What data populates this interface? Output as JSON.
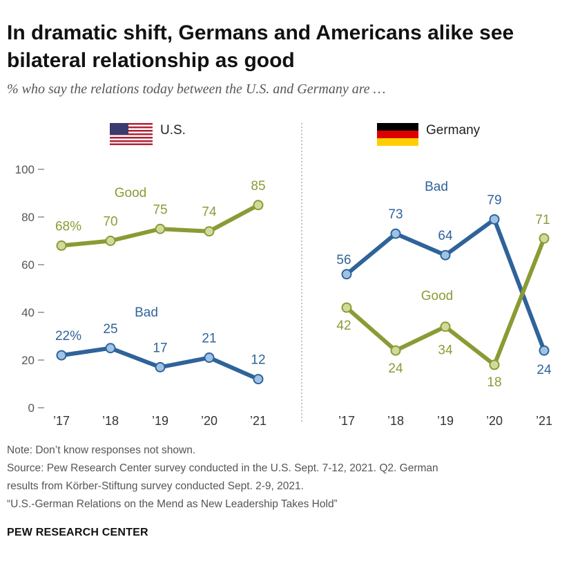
{
  "title": "In dramatic shift, Germans and Americans alike see bilateral relationship as good",
  "subtitle": "% who say the relations today between the U.S. and Germany are …",
  "colors": {
    "good": "#8a9b35",
    "bad": "#2f639a",
    "good_fill": "#d4d99a",
    "bad_fill": "#9ec3e6"
  },
  "chart_data": [
    {
      "type": "line",
      "panel": "U.S.",
      "flag_icon": "us-flag-icon",
      "categories": [
        "’17",
        "’18",
        "’19",
        "’20",
        "’21"
      ],
      "ylim": [
        0,
        100
      ],
      "yticks": [
        0,
        20,
        40,
        60,
        80,
        100
      ],
      "series": [
        {
          "name": "Good",
          "values": [
            68,
            70,
            75,
            74,
            85
          ],
          "labels": [
            "68%",
            "70",
            "75",
            "74",
            "85"
          ]
        },
        {
          "name": "Bad",
          "values": [
            22,
            25,
            17,
            21,
            12
          ],
          "labels": [
            "22%",
            "25",
            "17",
            "21",
            "12"
          ]
        }
      ]
    },
    {
      "type": "line",
      "panel": "Germany",
      "flag_icon": "germany-flag-icon",
      "categories": [
        "’17",
        "’18",
        "’19",
        "’20",
        "’21"
      ],
      "ylim": [
        0,
        100
      ],
      "series": [
        {
          "name": "Bad",
          "values": [
            56,
            73,
            64,
            79,
            24
          ],
          "labels": [
            "56",
            "73",
            "64",
            "79",
            "24"
          ]
        },
        {
          "name": "Good",
          "values": [
            42,
            24,
            34,
            18,
            71
          ],
          "labels": [
            "42",
            "24",
            "34",
            "18",
            "71"
          ]
        }
      ]
    }
  ],
  "notes": {
    "note": "Note: Don’t know responses not shown.",
    "source_line1": "Source: Pew Research Center survey conducted in the U.S. Sept. 7-12, 2021. Q2. German",
    "source_line2": "results from Körber-Stiftung survey conducted Sept. 2-9, 2021.",
    "report": "“U.S.-German Relations on the Mend as New Leadership Takes Hold”"
  },
  "brand": "PEW RESEARCH CENTER"
}
